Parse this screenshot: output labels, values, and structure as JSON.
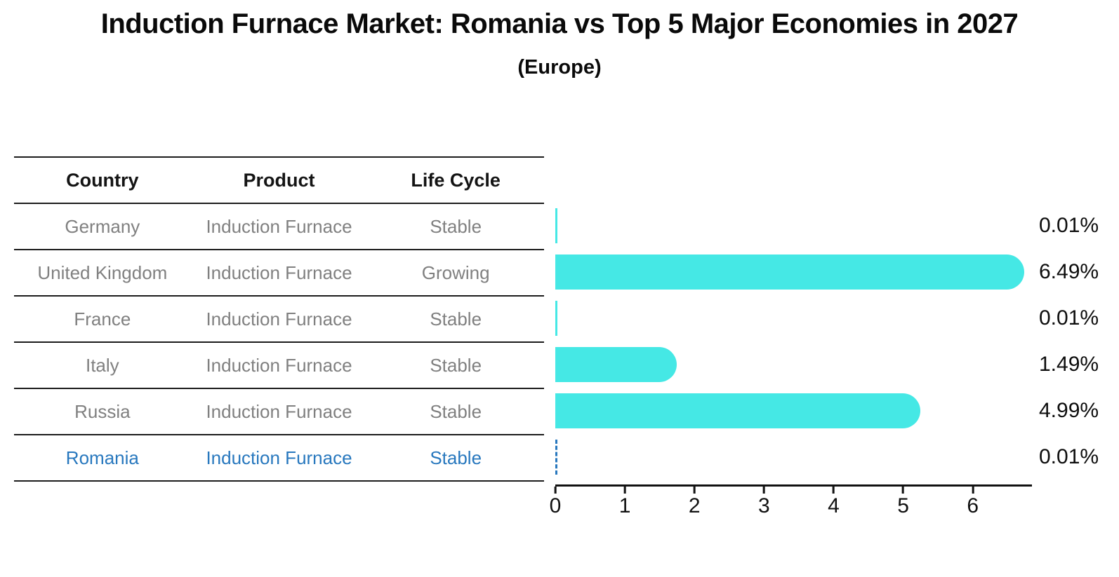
{
  "title": "Induction Furnace Market: Romania vs Top 5 Major Economies in 2027",
  "subtitle": "(Europe)",
  "table": {
    "headers": [
      "Country",
      "Product",
      "Life Cycle"
    ],
    "rows": [
      {
        "country": "Germany",
        "product": "Induction Furnace",
        "life_cycle": "Stable"
      },
      {
        "country": "United Kingdom",
        "product": "Induction Furnace",
        "life_cycle": "Growing"
      },
      {
        "country": "France",
        "product": "Induction Furnace",
        "life_cycle": "Stable"
      },
      {
        "country": "Italy",
        "product": "Induction Furnace",
        "life_cycle": "Stable"
      },
      {
        "country": "Russia",
        "product": "Induction Furnace",
        "life_cycle": "Stable"
      },
      {
        "country": "Romania",
        "product": "Induction Furnace",
        "life_cycle": "Stable"
      }
    ]
  },
  "chart_data": {
    "type": "bar",
    "orientation": "horizontal",
    "title": "Induction Furnace Market: Romania vs Top 5 Major Economies in 2027",
    "subtitle": "(Europe)",
    "categories": [
      "Germany",
      "United Kingdom",
      "France",
      "Italy",
      "Russia",
      "Romania"
    ],
    "values": [
      0.01,
      6.49,
      0.01,
      1.49,
      4.99,
      0.01
    ],
    "labels": [
      "0.01%",
      "6.49%",
      "0.01%",
      "1.49%",
      "4.99%",
      "0.01%"
    ],
    "x_ticks": [
      0,
      1,
      2,
      3,
      4,
      5,
      6
    ],
    "xlim": [
      0,
      6.85
    ],
    "grid": false,
    "legend": "none",
    "bar_color": "#45e8e5",
    "highlight_index": 5,
    "highlight_color": "#2878be",
    "value_suffix": "%"
  },
  "colors": {
    "background": "#ffffff",
    "text_primary": "#0a0a0a",
    "text_muted": "#808080",
    "table_line": "#1c1c1c",
    "bar": "#45e8e5",
    "highlight": "#2878be",
    "axis": "#111111"
  }
}
